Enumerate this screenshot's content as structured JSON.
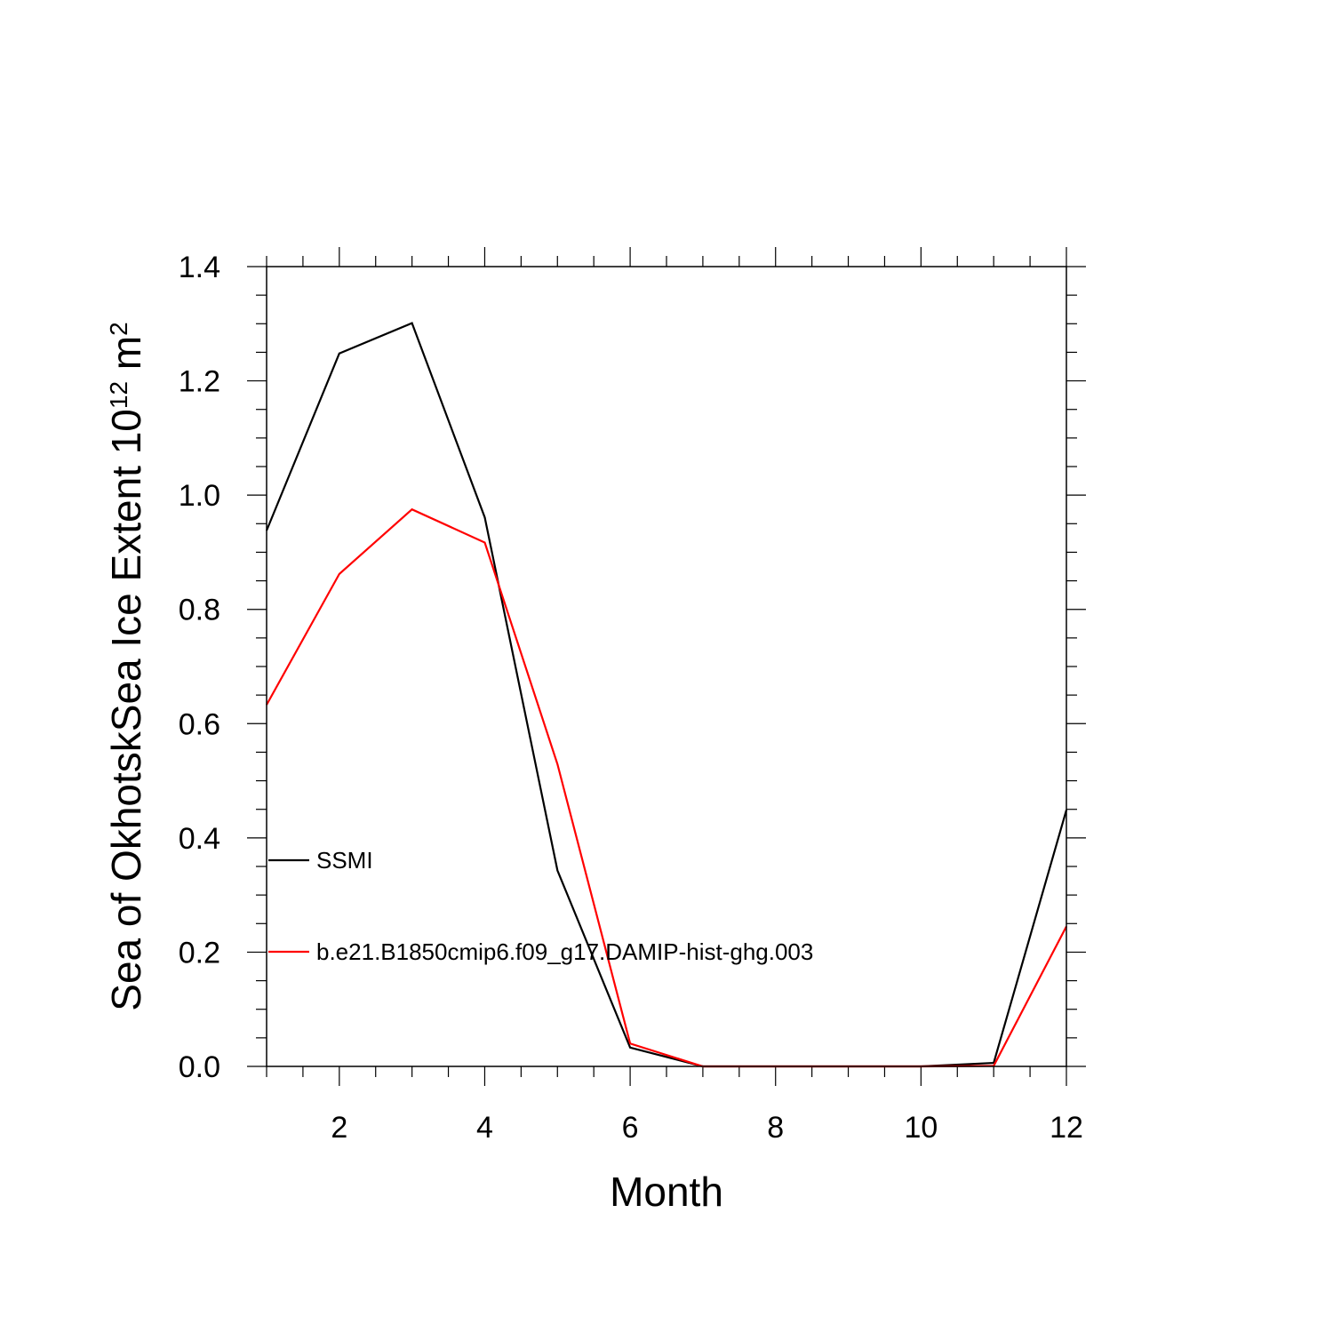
{
  "chart_data": {
    "type": "line",
    "title": "",
    "xlabel": "Month",
    "ylabel": {
      "prefix": "Sea of OkhotskSea Ice Extent 10",
      "superscript1": "12",
      "unit": " m",
      "superscript2": "2"
    },
    "xlim": [
      1,
      12
    ],
    "ylim": [
      0,
      1.4
    ],
    "xticks": [
      2,
      4,
      6,
      8,
      10,
      12
    ],
    "xtick_labels": [
      "2",
      "4",
      "6",
      "8",
      "10",
      "12"
    ],
    "yticks": [
      0,
      0.2,
      0.4,
      0.6,
      0.8,
      1.0,
      1.2,
      1.4
    ],
    "ytick_labels": [
      "0.0",
      "0.2",
      "0.4",
      "0.6",
      "0.8",
      "1.0",
      "1.2",
      "1.4"
    ],
    "x": [
      1,
      2,
      3,
      4,
      5,
      6,
      7,
      8,
      9,
      10,
      11,
      12
    ],
    "grid": false,
    "legend_position": "inside-left",
    "series": [
      {
        "name": "SSMI",
        "color": "#000000",
        "values": [
          0.938,
          1.248,
          1.301,
          0.961,
          0.343,
          0.033,
          0.0,
          0.0,
          0.0,
          0.0,
          0.006,
          0.449
        ]
      },
      {
        "name": "b.e21.B1850cmip6.f09_g17.DAMIP-hist-ghg.003",
        "color": "#ff0000",
        "values": [
          0.633,
          0.862,
          0.975,
          0.917,
          0.529,
          0.04,
          0.0,
          0.0,
          0.0,
          0.0,
          0.001,
          0.245
        ]
      }
    ]
  }
}
